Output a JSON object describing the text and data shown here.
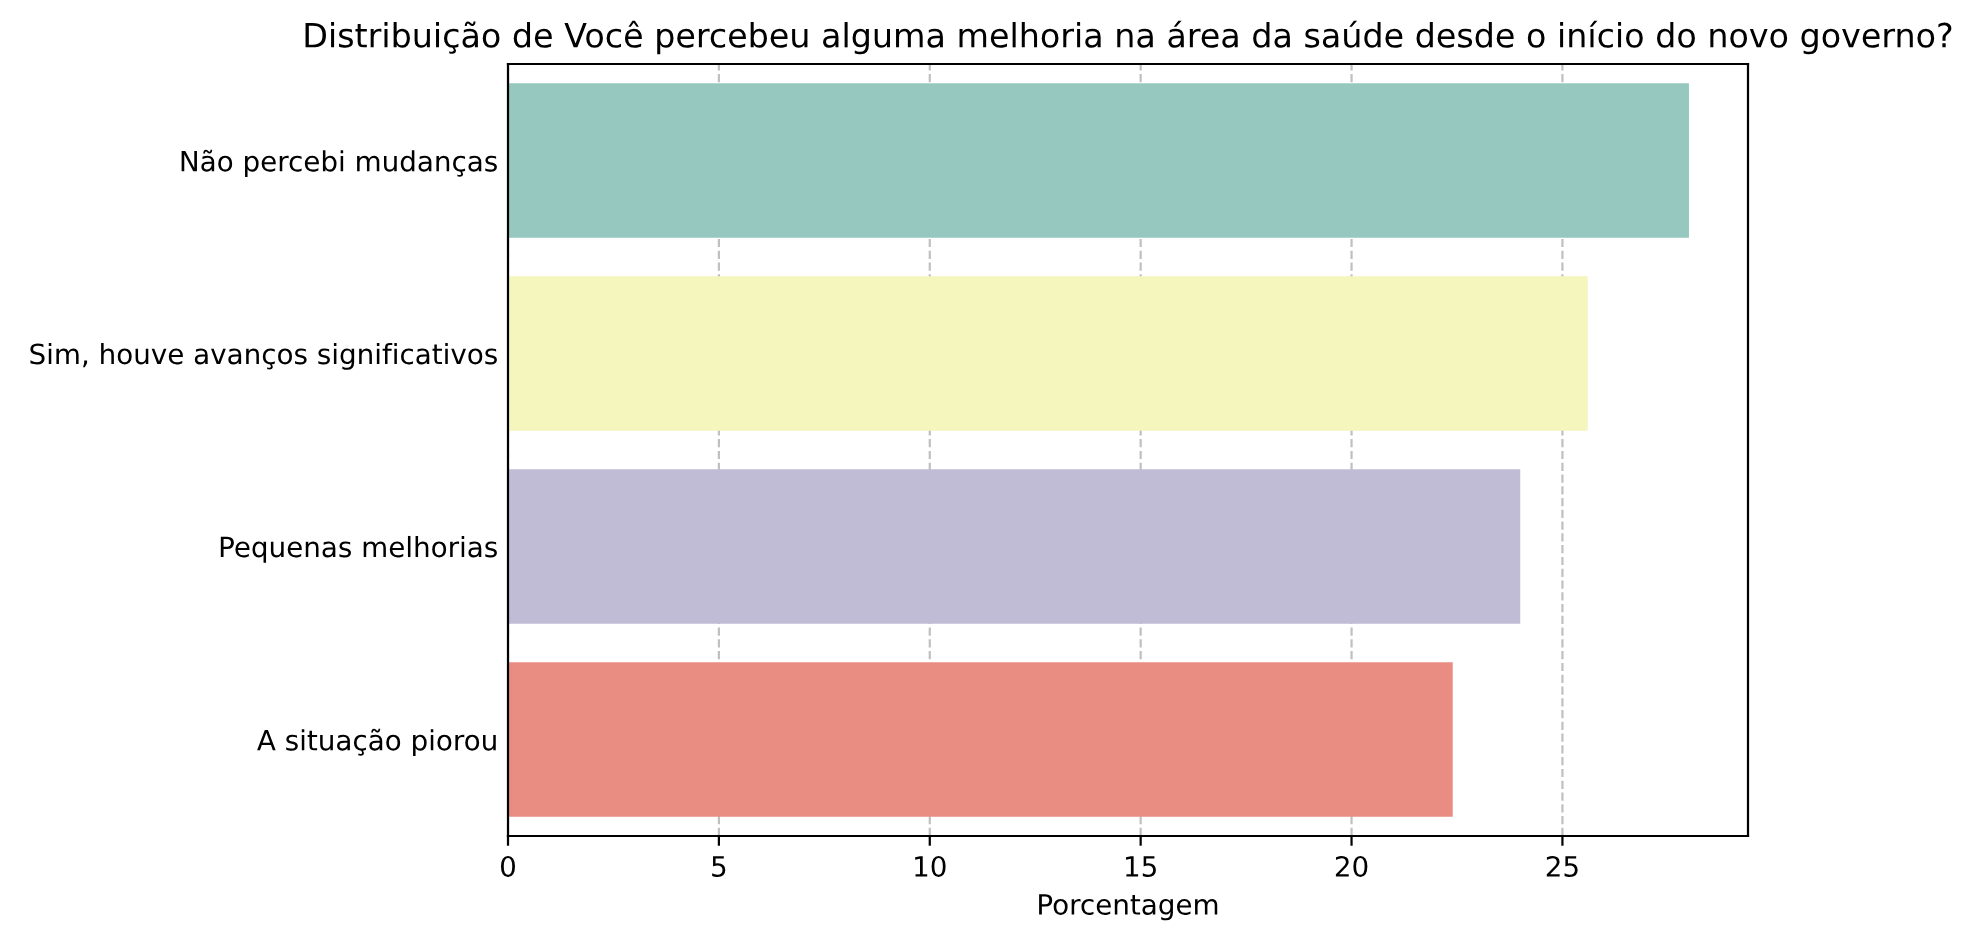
{
  "chart_data": {
    "type": "bar",
    "orientation": "horizontal",
    "title": "Distribuição de Você percebeu alguma melhoria na área da saúde desde o início do novo governo?",
    "xlabel": "Porcentagem",
    "categories": [
      "Não percebi mudanças",
      "Sim, houve avanços significativos",
      "Pequenas melhorias",
      "A situação piorou"
    ],
    "values": [
      28.0,
      25.6,
      24.0,
      22.4
    ],
    "colors": [
      "#97c8c0",
      "#f5f5be",
      "#c0bcd6",
      "#e98d83"
    ],
    "xlim": [
      0,
      29.4
    ],
    "xticks": [
      0,
      5,
      10,
      15,
      20,
      25
    ],
    "grid": "x"
  }
}
